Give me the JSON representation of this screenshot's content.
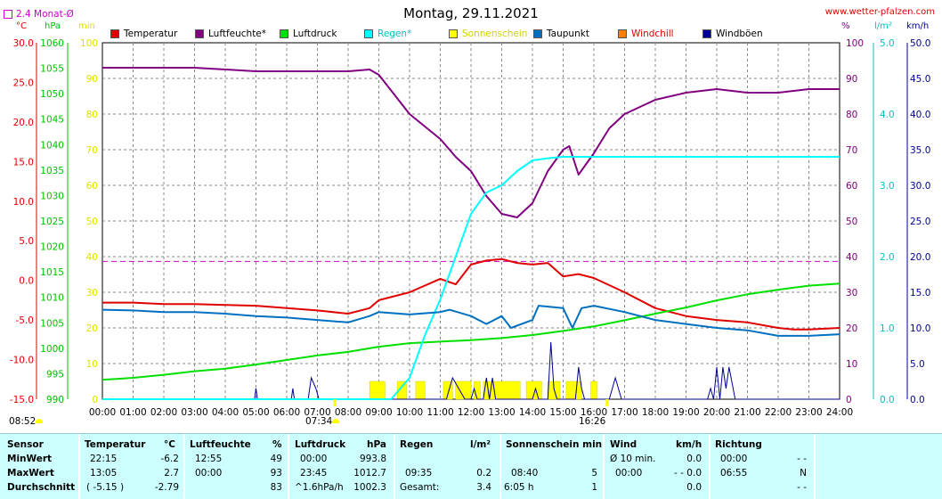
{
  "title": "Montag, 29.11.2021",
  "site": "www.wetter-pfalzen.com",
  "avg_label": "2.4 Monat-Ø",
  "unit_labels": {
    "temp": "°C",
    "press": "hPa",
    "min": "min",
    "pct": "%",
    "rain": "l/m²",
    "wind": "km/h"
  },
  "legend": [
    {
      "label": "Temperatur",
      "color": "#e00000"
    },
    {
      "label": "Luftfeuchte*",
      "color": "#800080"
    },
    {
      "label": "Luftdruck",
      "color": "#00e000"
    },
    {
      "label": "Regen*",
      "color": "#00ffff"
    },
    {
      "label": "Sonnenschein",
      "color": "#ffff00"
    },
    {
      "label": "Taupunkt",
      "color": "#0070c0"
    },
    {
      "label": "Windchill",
      "color": "#ff8000"
    },
    {
      "label": "Windböen",
      "color": "#000090"
    }
  ],
  "sunrise": "08:52",
  "sunset_label": "07:34",
  "sunset2_label": "16:26",
  "stats": {
    "labels": {
      "sensor": "Sensor",
      "min": "MinWert",
      "max": "MaxWert",
      "avg": "Durchschnitt"
    },
    "temp": {
      "head": "Temperatur",
      "unit": "°C",
      "min_time": "22:15",
      "min_val": "-6.2",
      "max_time": "13:05",
      "max_val": "2.7",
      "avg_time": "( -5.15 )",
      "avg_val": "-2.79"
    },
    "hum": {
      "head": "Luftfeuchte",
      "unit": "%",
      "min_time": "12:55",
      "min_val": "49",
      "max_time": "00:00",
      "max_val": "93",
      "avg_val": "83"
    },
    "press": {
      "head": "Luftdruck",
      "unit": "hPa",
      "min_time": "00:00",
      "min_val": "993.8",
      "max_time": "23:45",
      "max_val": "1012.7",
      "avg_time": "^1.6hPa/h",
      "avg_val": "1002.3"
    },
    "rain": {
      "head": "Regen",
      "unit": "l/m²",
      "max_time": "09:35",
      "max_val": "0.2",
      "avg_time": "Gesamt:",
      "avg_val": "3.4"
    },
    "sun": {
      "head": "Sonnenschein min",
      "max_time": "08:40",
      "max_val": "5",
      "avg_time": "6:05 h",
      "avg_val": "1"
    },
    "wind": {
      "head": "Wind",
      "unit": "km/h",
      "min_time": "Ø 10 min.",
      "min_val": "0.0",
      "max_time": "00:00",
      "max_val": "- - 0.0",
      "avg_val": "0.0"
    },
    "dir": {
      "head": "Richtung",
      "min_time": "00:00",
      "min_val": "- -",
      "max_time": "06:55",
      "max_val": "N",
      "avg_val": "- -"
    }
  },
  "chart_data": {
    "type": "line",
    "xlabel": "",
    "x_ticks": [
      "00:00",
      "01:00",
      "02:00",
      "03:00",
      "04:00",
      "05:00",
      "06:00",
      "07:00",
      "08:00",
      "09:00",
      "10:00",
      "11:00",
      "12:00",
      "13:00",
      "14:00",
      "15:00",
      "16:00",
      "17:00",
      "18:00",
      "19:00",
      "20:00",
      "21:00",
      "22:00",
      "23:00",
      "24:00"
    ],
    "axes": {
      "temp": {
        "range": [
          -15,
          30
        ],
        "ticks": [
          "30.0",
          "25.0",
          "20.0",
          "15.0",
          "10.0",
          "5.0",
          "0.0",
          "-5.0",
          "-10.0",
          "-15.0"
        ],
        "color": "#e00000"
      },
      "press": {
        "range": [
          990,
          1060
        ],
        "ticks": [
          "1060",
          "1055",
          "1050",
          "1045",
          "1040",
          "1035",
          "1030",
          "1025",
          "1020",
          "1015",
          "1010",
          "1005",
          "1000",
          "995",
          "990"
        ],
        "color": "#00c000"
      },
      "min": {
        "range": [
          0,
          100
        ],
        "ticks": [
          "100",
          "90",
          "80",
          "70",
          "60",
          "50",
          "40",
          "30",
          "20",
          "10",
          "0"
        ],
        "color": "#ffff00"
      },
      "pct": {
        "range": [
          0,
          100
        ],
        "ticks": [
          "100",
          "90",
          "80",
          "70",
          "60",
          "50",
          "40",
          "30",
          "20",
          "10",
          "0"
        ],
        "color": "#800080"
      },
      "rain": {
        "range": [
          0,
          5
        ],
        "ticks": [
          "5.0",
          "4.0",
          "3.0",
          "2.0",
          "1.0",
          "0.0"
        ],
        "color": "#00d0d0"
      },
      "wind": {
        "range": [
          0,
          50
        ],
        "ticks": [
          "50.0",
          "45.0",
          "40.0",
          "35.0",
          "30.0",
          "25.0",
          "20.0",
          "15.0",
          "10.0",
          "5.0",
          "0.0"
        ],
        "color": "#000090"
      }
    },
    "avg_temp_line": 2.4,
    "series": [
      {
        "name": "Temperatur",
        "color": "#e00000",
        "axis": "temp",
        "points": [
          [
            0,
            -2.8
          ],
          [
            1,
            -2.8
          ],
          [
            2,
            -3.0
          ],
          [
            3,
            -3.0
          ],
          [
            4,
            -3.1
          ],
          [
            5,
            -3.2
          ],
          [
            6,
            -3.5
          ],
          [
            7,
            -3.8
          ],
          [
            8,
            -4.2
          ],
          [
            8.7,
            -3.5
          ],
          [
            9,
            -2.5
          ],
          [
            10,
            -1.5
          ],
          [
            11,
            0.2
          ],
          [
            11.5,
            -0.5
          ],
          [
            12,
            2.0
          ],
          [
            12.5,
            2.5
          ],
          [
            13,
            2.7
          ],
          [
            13.5,
            2.2
          ],
          [
            14,
            2.0
          ],
          [
            14.5,
            2.2
          ],
          [
            15,
            0.5
          ],
          [
            15.5,
            0.8
          ],
          [
            16,
            0.3
          ],
          [
            17,
            -1.5
          ],
          [
            18,
            -3.5
          ],
          [
            19,
            -4.5
          ],
          [
            20,
            -5.0
          ],
          [
            21,
            -5.3
          ],
          [
            22,
            -6.0
          ],
          [
            22.5,
            -6.2
          ],
          [
            23,
            -6.2
          ],
          [
            24,
            -6.0
          ]
        ]
      },
      {
        "name": "Luftfeuchte*",
        "color": "#800080",
        "axis": "pct",
        "points": [
          [
            0,
            93
          ],
          [
            3,
            93
          ],
          [
            4,
            92.5
          ],
          [
            5,
            92
          ],
          [
            6,
            92
          ],
          [
            7,
            92
          ],
          [
            8,
            92
          ],
          [
            8.7,
            92.5
          ],
          [
            9,
            91
          ],
          [
            10,
            80
          ],
          [
            11,
            73
          ],
          [
            11.5,
            68
          ],
          [
            12,
            64
          ],
          [
            12.5,
            57
          ],
          [
            13,
            52
          ],
          [
            13.5,
            51
          ],
          [
            14,
            55
          ],
          [
            14.5,
            64
          ],
          [
            15,
            70
          ],
          [
            15.2,
            71
          ],
          [
            15.5,
            63
          ],
          [
            16,
            69
          ],
          [
            16.5,
            76
          ],
          [
            17,
            80
          ],
          [
            18,
            84
          ],
          [
            19,
            86
          ],
          [
            20,
            87
          ],
          [
            21,
            86
          ],
          [
            22,
            86
          ],
          [
            23,
            87
          ],
          [
            24,
            87
          ]
        ]
      },
      {
        "name": "Luftdruck",
        "color": "#00e000",
        "axis": "press",
        "points": [
          [
            0,
            993.8
          ],
          [
            1,
            994.2
          ],
          [
            2,
            994.8
          ],
          [
            3,
            995.5
          ],
          [
            4,
            996.0
          ],
          [
            5,
            996.8
          ],
          [
            6,
            997.7
          ],
          [
            7,
            998.6
          ],
          [
            8,
            999.3
          ],
          [
            9,
            1000.3
          ],
          [
            10,
            1001.0
          ],
          [
            11,
            1001.3
          ],
          [
            12,
            1001.6
          ],
          [
            13,
            1002.0
          ],
          [
            14,
            1002.6
          ],
          [
            15,
            1003.4
          ],
          [
            16,
            1004.3
          ],
          [
            17,
            1005.5
          ],
          [
            18,
            1006.8
          ],
          [
            19,
            1008.0
          ],
          [
            20,
            1009.4
          ],
          [
            21,
            1010.6
          ],
          [
            22,
            1011.5
          ],
          [
            23,
            1012.3
          ],
          [
            24,
            1012.7
          ]
        ]
      },
      {
        "name": "Regen*",
        "color": "#00ffff",
        "axis": "rain",
        "points": [
          [
            0,
            0
          ],
          [
            9.4,
            0
          ],
          [
            10,
            0.3
          ],
          [
            10.5,
            0.9
          ],
          [
            11,
            1.4
          ],
          [
            11.5,
            2.0
          ],
          [
            12,
            2.6
          ],
          [
            12.5,
            2.9
          ],
          [
            13,
            3.0
          ],
          [
            13.5,
            3.2
          ],
          [
            14,
            3.35
          ],
          [
            14.5,
            3.38
          ],
          [
            15,
            3.4
          ],
          [
            24,
            3.4
          ]
        ]
      },
      {
        "name": "Taupunkt",
        "color": "#0070c0",
        "axis": "temp",
        "points": [
          [
            0,
            -3.7
          ],
          [
            1,
            -3.8
          ],
          [
            2,
            -4.0
          ],
          [
            3,
            -4.0
          ],
          [
            4,
            -4.2
          ],
          [
            5,
            -4.5
          ],
          [
            6,
            -4.7
          ],
          [
            7,
            -5.0
          ],
          [
            8,
            -5.3
          ],
          [
            8.7,
            -4.5
          ],
          [
            9,
            -4.0
          ],
          [
            10,
            -4.3
          ],
          [
            11,
            -4.0
          ],
          [
            11.3,
            -3.7
          ],
          [
            12,
            -4.5
          ],
          [
            12.5,
            -5.5
          ],
          [
            13,
            -4.5
          ],
          [
            13.3,
            -6.0
          ],
          [
            14,
            -5.0
          ],
          [
            14.2,
            -3.2
          ],
          [
            15,
            -3.5
          ],
          [
            15.3,
            -6.0
          ],
          [
            15.6,
            -3.5
          ],
          [
            16,
            -3.2
          ],
          [
            17,
            -4.0
          ],
          [
            18,
            -5.0
          ],
          [
            19,
            -5.5
          ],
          [
            20,
            -6.0
          ],
          [
            21,
            -6.3
          ],
          [
            22,
            -7.0
          ],
          [
            23,
            -7.0
          ],
          [
            24,
            -6.8
          ]
        ]
      }
    ],
    "sunshine_intervals": [
      [
        8.7,
        9.2
      ],
      [
        9.6,
        9.9
      ],
      [
        10.2,
        10.5
      ],
      [
        11.1,
        11.4
      ],
      [
        11.5,
        12.0
      ],
      [
        12.1,
        12.3
      ],
      [
        12.4,
        13.6
      ],
      [
        13.8,
        14.3
      ],
      [
        14.5,
        14.9
      ],
      [
        15.1,
        15.6
      ],
      [
        15.9,
        16.1
      ]
    ],
    "gusts": [
      [
        0,
        0
      ],
      [
        4.95,
        0
      ],
      [
        5.0,
        1.5
      ],
      [
        5.05,
        0
      ],
      [
        6.15,
        0
      ],
      [
        6.2,
        1.5
      ],
      [
        6.25,
        0
      ],
      [
        6.7,
        0
      ],
      [
        6.8,
        3.0
      ],
      [
        6.95,
        1.5
      ],
      [
        7.05,
        0
      ],
      [
        11.2,
        0
      ],
      [
        11.4,
        3.0
      ],
      [
        11.6,
        1.5
      ],
      [
        11.8,
        0
      ],
      [
        12.0,
        0
      ],
      [
        12.1,
        1.5
      ],
      [
        12.2,
        0
      ],
      [
        12.4,
        0
      ],
      [
        12.5,
        3.0
      ],
      [
        12.6,
        0
      ],
      [
        12.7,
        3.0
      ],
      [
        12.8,
        0
      ],
      [
        14.0,
        0
      ],
      [
        14.1,
        1.5
      ],
      [
        14.2,
        0
      ],
      [
        14.5,
        0
      ],
      [
        14.6,
        8.0
      ],
      [
        14.7,
        1.5
      ],
      [
        14.8,
        0
      ],
      [
        15.4,
        0
      ],
      [
        15.5,
        4.5
      ],
      [
        15.6,
        1.5
      ],
      [
        15.7,
        0
      ],
      [
        16.5,
        0
      ],
      [
        16.6,
        1.5
      ],
      [
        16.7,
        3.0
      ],
      [
        16.8,
        1.5
      ],
      [
        16.9,
        0
      ],
      [
        19.7,
        0
      ],
      [
        19.8,
        1.5
      ],
      [
        19.9,
        0
      ],
      [
        20.0,
        4.5
      ],
      [
        20.1,
        0
      ],
      [
        20.2,
        4.5
      ],
      [
        20.3,
        1.5
      ],
      [
        20.4,
        4.5
      ],
      [
        20.6,
        0
      ],
      [
        24,
        0
      ]
    ]
  }
}
